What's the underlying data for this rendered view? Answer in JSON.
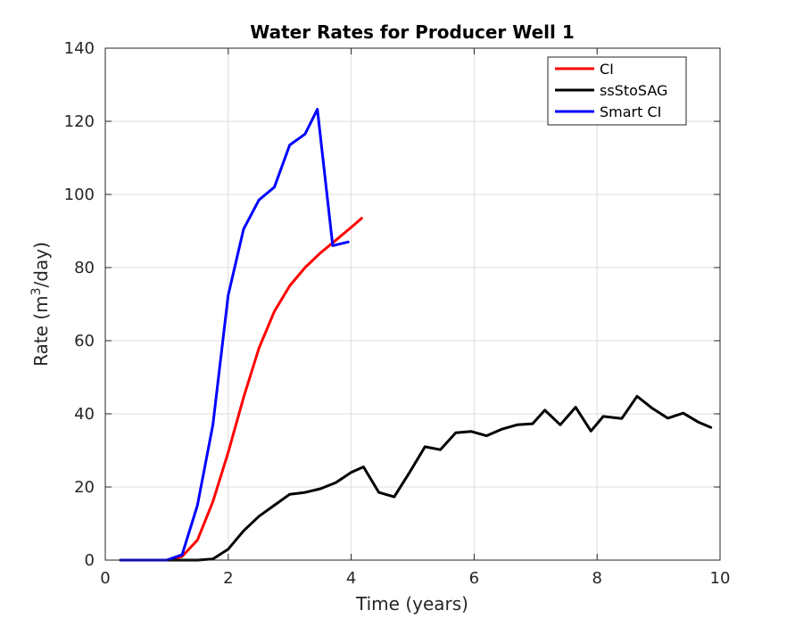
{
  "chart_data": {
    "type": "line",
    "title": "Water Rates for Producer Well 1",
    "xlabel": "Time (years)",
    "ylabel_prefix": "Rate (m",
    "ylabel_sup": "3",
    "ylabel_suffix": "/day)",
    "xlim": [
      0,
      10
    ],
    "ylim": [
      0,
      140
    ],
    "xticks": [
      0,
      2,
      4,
      6,
      8,
      10
    ],
    "yticks": [
      0,
      20,
      40,
      60,
      80,
      100,
      120,
      140
    ],
    "grid": true,
    "legend_position": "top-right",
    "series": [
      {
        "name": "CI",
        "color": "#ff0000",
        "x": [
          0.25,
          0.5,
          0.75,
          1.0,
          1.25,
          1.5,
          1.75,
          2.0,
          2.25,
          2.5,
          2.75,
          3.0,
          3.25,
          3.5,
          3.75,
          4.0,
          4.17
        ],
        "y": [
          0,
          0,
          0,
          0,
          1,
          5.5,
          16,
          29.5,
          44.5,
          58,
          68,
          75,
          80,
          84,
          87.5,
          91,
          93.5
        ]
      },
      {
        "name": "ssStoSAG",
        "color": "#000000",
        "x": [
          0.25,
          0.5,
          0.75,
          1.0,
          1.25,
          1.5,
          1.75,
          2.0,
          2.25,
          2.5,
          2.75,
          3.0,
          3.25,
          3.5,
          3.75,
          4.0,
          4.2,
          4.45,
          4.7,
          4.95,
          5.2,
          5.45,
          5.7,
          5.95,
          6.2,
          6.45,
          6.7,
          6.95,
          7.15,
          7.4,
          7.65,
          7.9,
          8.1,
          8.4,
          8.65,
          8.9,
          9.15,
          9.4,
          9.65,
          9.85
        ],
        "y": [
          0,
          0,
          0,
          0,
          0,
          0,
          0.3,
          3,
          8,
          12,
          15,
          18,
          18.5,
          19.5,
          21.2,
          24,
          25.5,
          18.5,
          17.3,
          24,
          31,
          30.2,
          34.8,
          35.2,
          34,
          35.8,
          37,
          37.3,
          41,
          37,
          41.8,
          35.3,
          39.3,
          38.7,
          44.8,
          41.5,
          38.8,
          40.2,
          37.7,
          36.3
        ]
      },
      {
        "name": "Smart CI",
        "color": "#0000ff",
        "x": [
          0.25,
          0.5,
          0.75,
          1.0,
          1.25,
          1.5,
          1.75,
          2.0,
          2.25,
          2.5,
          2.75,
          3.0,
          3.25,
          3.45,
          3.7,
          3.95
        ],
        "y": [
          0,
          0,
          0,
          0,
          1.5,
          15,
          37,
          72.5,
          90.5,
          98.5,
          102,
          113.5,
          116.5,
          123.3,
          86,
          87
        ]
      }
    ]
  }
}
